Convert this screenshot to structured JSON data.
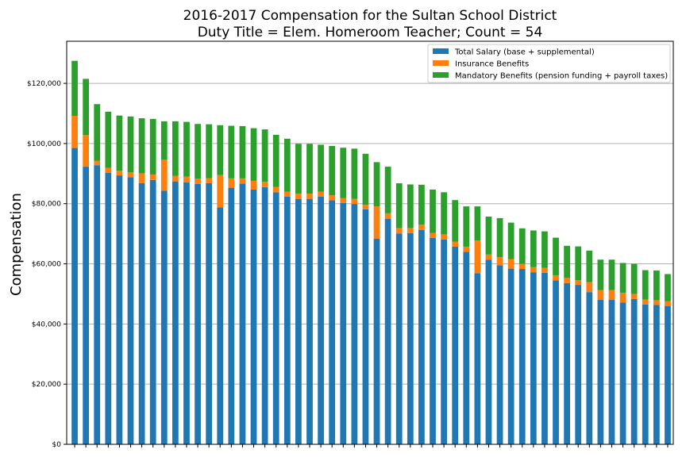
{
  "chart_data": {
    "type": "bar",
    "stacked": true,
    "title_line1": "2016-2017 Compensation for the Sultan School District",
    "title_line2": "Duty Title = Elem. Homeroom Teacher; Count = 54",
    "xlabel": "",
    "ylabel": "Compensation",
    "ylim": [
      0,
      134000
    ],
    "yticks": [
      0,
      20000,
      40000,
      60000,
      80000,
      100000,
      120000
    ],
    "ytick_labels": [
      "$0",
      "$20,000",
      "$40,000",
      "$60,000",
      "$80,000",
      "$100,000",
      "$120,000"
    ],
    "grid": "horizontal",
    "legend_position": "top-right",
    "series": [
      {
        "name": "Total Salary (base + supplemental)",
        "color": "#1f77b4",
        "values": [
          98500,
          92300,
          92800,
          90300,
          89400,
          88800,
          86800,
          87900,
          84300,
          87400,
          87100,
          86600,
          86800,
          78800,
          85300,
          86700,
          84700,
          85500,
          83800,
          82300,
          81600,
          81600,
          82300,
          81100,
          80200,
          79900,
          78100,
          68400,
          75000,
          70100,
          70200,
          71300,
          68600,
          68100,
          65700,
          64000,
          56900,
          61400,
          59500,
          58400,
          58300,
          57200,
          57000,
          54500,
          53600,
          53000,
          50600,
          48000,
          48000,
          47100,
          48300,
          46500,
          46300,
          46000
        ]
      },
      {
        "name": "Insurance Benefits",
        "color": "#ff7f0e",
        "values": [
          10700,
          10500,
          1500,
          1600,
          1600,
          1600,
          3300,
          1800,
          10300,
          1800,
          1900,
          1700,
          1700,
          10700,
          3100,
          1700,
          2900,
          1800,
          1800,
          1700,
          1700,
          1700,
          1700,
          1700,
          1700,
          1700,
          1500,
          10700,
          1800,
          1800,
          1700,
          1700,
          1700,
          1700,
          1700,
          1700,
          10900,
          1700,
          2700,
          3200,
          1700,
          1700,
          1700,
          1700,
          1700,
          1600,
          3300,
          3300,
          3300,
          3300,
          1700,
          1600,
          1600,
          1600
        ]
      },
      {
        "name": "Mandatory Benefits (pension funding + payroll taxes)",
        "color": "#2ca02c",
        "values": [
          18300,
          18700,
          18800,
          18700,
          18300,
          18600,
          18300,
          18500,
          12800,
          18200,
          18200,
          18200,
          17900,
          16600,
          17500,
          17400,
          17500,
          17400,
          17300,
          17600,
          16600,
          16600,
          15600,
          16400,
          16700,
          16700,
          17000,
          14700,
          15500,
          14900,
          14500,
          13300,
          14400,
          14000,
          13800,
          13400,
          11300,
          12600,
          13000,
          12100,
          11800,
          12200,
          12100,
          12500,
          10700,
          11200,
          10500,
          10100,
          10100,
          9900,
          10000,
          9800,
          9900,
          9000
        ]
      }
    ]
  }
}
